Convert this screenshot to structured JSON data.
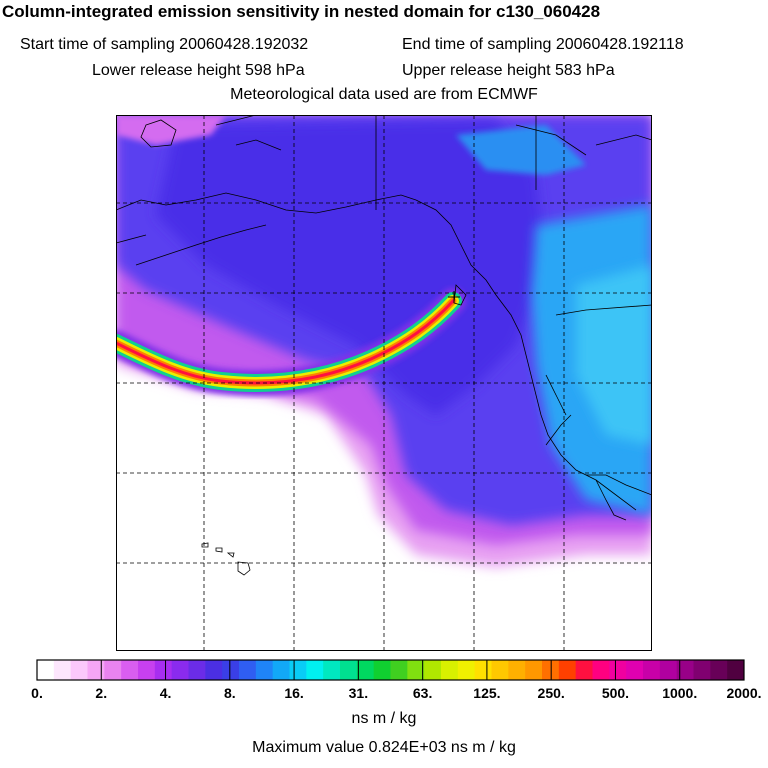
{
  "title": "Column-integrated emission sensitivity in nested domain for c130_060428",
  "start_label": "Start time of sampling 20060428.192032",
  "end_label": "End time of sampling 20060428.192118",
  "lower_label": "Lower release height  598 hPa",
  "upper_label": "Upper release height  583 hPa",
  "met_label": "Meteorological data used are from ECMWF",
  "units": "ns m / kg",
  "max_value": "Maximum value  0.824E+03 ns m / kg",
  "colorbar": {
    "tick_labels": [
      "0.",
      "2.",
      "4.",
      "8.",
      "16.",
      "31.",
      "63.",
      "125.",
      "250.",
      "500.",
      "1000.",
      "2000."
    ],
    "colors": [
      "#ffffff",
      "#fde6fd",
      "#fbc8fb",
      "#f6a6f6",
      "#e983ef",
      "#d95ef0",
      "#c740ef",
      "#a82ef0",
      "#8a2bee",
      "#6b2ce8",
      "#4b2fe3",
      "#3a3fe6",
      "#2f5ef2",
      "#1f84f7",
      "#12a8f7",
      "#09ccf6",
      "#00f0f0",
      "#00e8c0",
      "#00e090",
      "#00d860",
      "#10d030",
      "#40d020",
      "#80e010",
      "#b0e800",
      "#d8f000",
      "#f0f000",
      "#ffe000",
      "#ffc800",
      "#ffb000",
      "#ff9800",
      "#ff7000",
      "#ff4000",
      "#ff1040",
      "#ff0080",
      "#f000a0",
      "#e000b0",
      "#c800a8",
      "#b000a0",
      "#980088",
      "#800070",
      "#680058",
      "#500040"
    ]
  },
  "map": {
    "source_marker": "cross-icon"
  }
}
